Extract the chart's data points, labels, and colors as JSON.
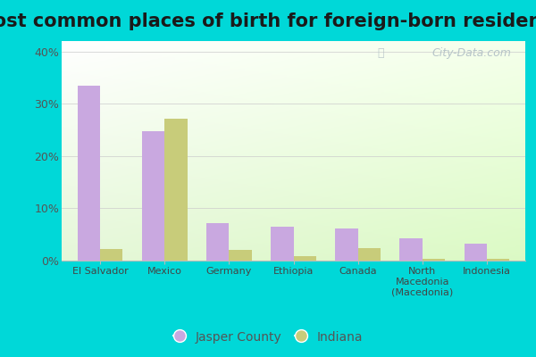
{
  "title": "Most common places of birth for foreign-born residents",
  "categories": [
    "El Salvador",
    "Mexico",
    "Germany",
    "Ethiopia",
    "Canada",
    "North\nMacedonia\n(Macedonia)",
    "Indonesia"
  ],
  "jasper_county": [
    33.5,
    24.8,
    7.2,
    6.5,
    6.1,
    4.2,
    3.3
  ],
  "indiana": [
    2.3,
    27.2,
    2.1,
    0.9,
    2.4,
    0.4,
    0.4
  ],
  "jasper_color": "#c9a8e0",
  "indiana_color": "#c8cc7a",
  "bar_width": 0.35,
  "ylim": [
    0,
    42
  ],
  "yticks": [
    0,
    10,
    20,
    30,
    40
  ],
  "ytick_labels": [
    "0%",
    "10%",
    "20%",
    "30%",
    "40%"
  ],
  "legend_labels": [
    "Jasper County",
    "Indiana"
  ],
  "bg_outer": "#00d8d8",
  "watermark": "City-Data.com",
  "title_fontsize": 15,
  "tick_fontsize": 9,
  "legend_fontsize": 10
}
